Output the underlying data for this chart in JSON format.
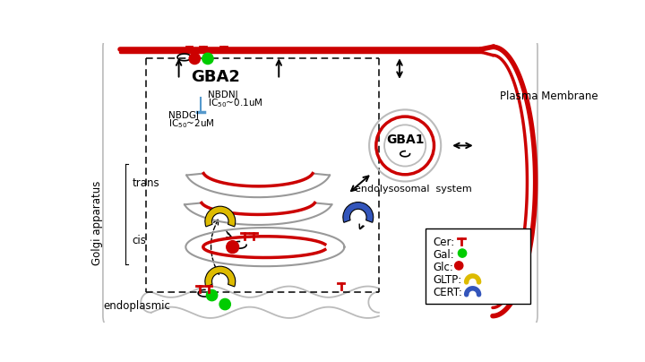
{
  "bg_color": "#ffffff",
  "RED": "#cc0000",
  "GREEN": "#00cc00",
  "YELLOW": "#ddbb00",
  "BLUE": "#3355bb",
  "BLACK": "#000000",
  "GRAY": "#999999",
  "LGRAY": "#bbbbbb",
  "GBA2_label": "GBA2",
  "GBA1_label": "GBA1",
  "NBDNJ_label": "NBDNJ",
  "NBDGJ_label": "NBDGJ",
  "endolysosomal_label": "endolysosomal  system",
  "plasma_membrane_label": "Plasma Membrane",
  "golgi_apparatus_label": "Golgi apparatus",
  "trans_label": "trans",
  "cis_label": "cis",
  "endoplasmic_label": "endoplasmic",
  "legend_cer": "Cer:",
  "legend_gal": "Gal:",
  "legend_glc": "Glc:",
  "legend_gltp": "GLTP:",
  "legend_cert": "CERT:"
}
